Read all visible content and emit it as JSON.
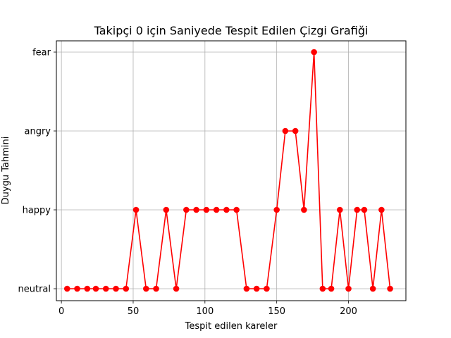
{
  "chart_data": {
    "type": "line",
    "title": "Takipçi 0 için Saniyede Tespit Edilen Çizgi Grafiği",
    "xlabel": "Tespit edilen kareler",
    "ylabel": "Duygu Tahmini",
    "xlim": [
      -3.5,
      240
    ],
    "x_ticks": [
      0,
      50,
      100,
      150,
      200
    ],
    "y_categories": [
      "neutral",
      "happy",
      "angry",
      "fear"
    ],
    "grid": true,
    "line_color": "#ff0000",
    "marker": "circle",
    "series": [
      {
        "x": [
          4,
          11,
          18,
          24,
          31,
          38,
          45,
          52,
          59,
          66,
          73,
          80,
          87,
          94,
          101,
          108,
          115,
          122,
          129,
          136,
          143,
          150,
          156,
          163,
          169,
          176,
          182,
          188,
          194,
          200,
          206,
          211,
          217,
          223,
          229
        ],
        "y": [
          "neutral",
          "neutral",
          "neutral",
          "neutral",
          "neutral",
          "neutral",
          "neutral",
          "happy",
          "neutral",
          "neutral",
          "happy",
          "neutral",
          "happy",
          "happy",
          "happy",
          "happy",
          "happy",
          "happy",
          "neutral",
          "neutral",
          "neutral",
          "happy",
          "angry",
          "angry",
          "happy",
          "fear",
          "neutral",
          "neutral",
          "happy",
          "neutral",
          "happy",
          "happy",
          "neutral",
          "happy",
          "neutral"
        ]
      }
    ]
  }
}
